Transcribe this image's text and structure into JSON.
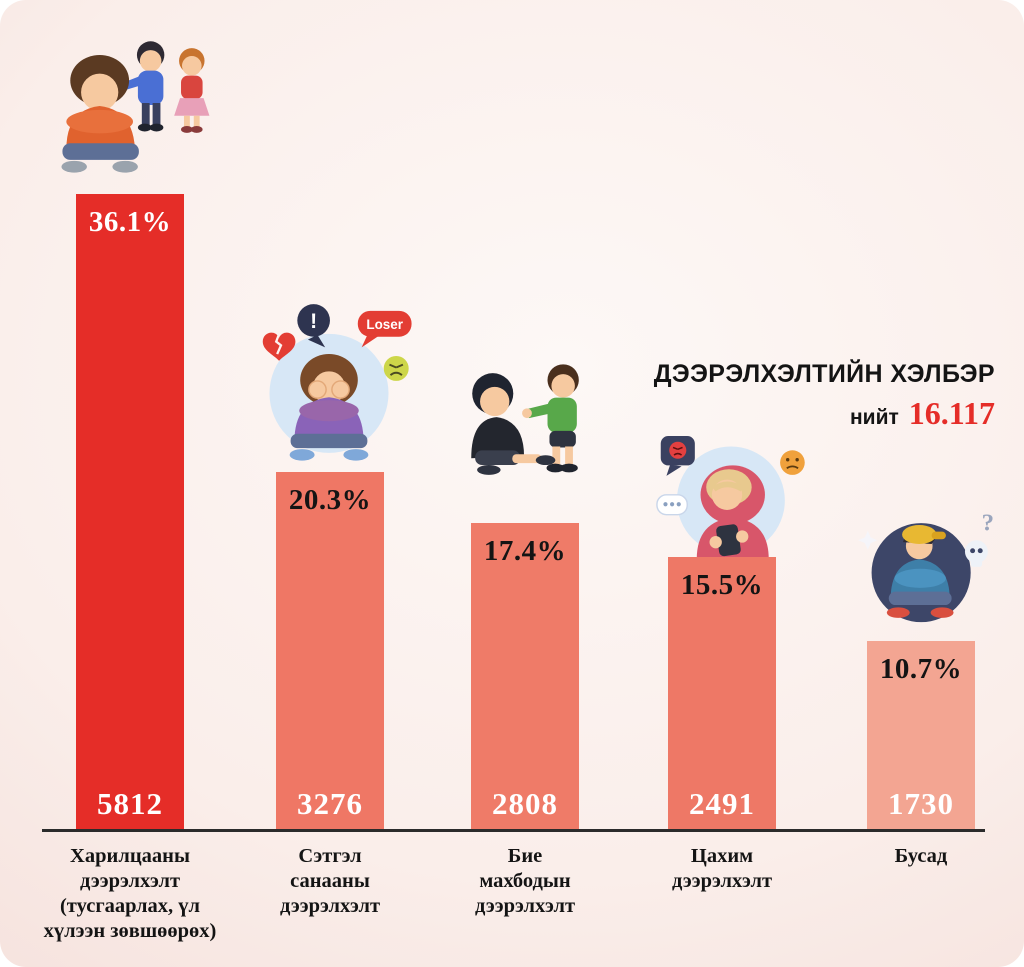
{
  "title": "ДЭЭРЭЛХЭЛТИЙН ХЭЛБЭР",
  "total_label": "нийт",
  "total_value": "16.117",
  "chart_data": {
    "type": "bar",
    "title": "ДЭЭРЭЛХЭЛТИЙН ХЭЛБЭР",
    "total": 16117,
    "categories": [
      "Харилцааны дээрэлхэлт (тусгаарлах, үл хүлээн зөвшөөрөх)",
      "Сэтгэл санааны дээрэлхэлт",
      "Бие махбодын дээрэлхэлт",
      "Цахим дээрэлхэлт",
      "Бусад"
    ],
    "series": [
      {
        "name": "count",
        "values": [
          5812,
          3276,
          2808,
          2491,
          1730
        ]
      },
      {
        "name": "percent",
        "values": [
          36.1,
          20.3,
          17.4,
          15.5,
          10.7
        ]
      }
    ],
    "ylim": [
      0,
      5812
    ],
    "legend": "none",
    "grid": false,
    "bars": [
      {
        "label": "Харилцааны\nдээрэлхэлт\n(тусгаарлах, үл\nхүлээн зөвшөөрөх)",
        "percent": "36.1%",
        "count": "5812",
        "value": 5812,
        "color": "#e52d28",
        "percent_color": "#ffffff"
      },
      {
        "label": "Сэтгэл\nсанааны\nдээрэлхэлт",
        "percent": "20.3%",
        "count": "3276",
        "value": 3276,
        "color": "#ef7765",
        "percent_color": "#141414"
      },
      {
        "label": "Бие\nмахбодын\nдээрэлхэлт",
        "percent": "17.4%",
        "count": "2808",
        "value": 2808,
        "color": "#ef7b68",
        "percent_color": "#141414"
      },
      {
        "label": "Цахим\nдээрэлхэлт",
        "percent": "15.5%",
        "count": "2491",
        "value": 2491,
        "color": "#ee7866",
        "percent_color": "#141414"
      },
      {
        "label": "Бусад",
        "percent": "10.7%",
        "count": "1730",
        "value": 1730,
        "color": "#f3a592",
        "percent_color": "#141414"
      }
    ]
  },
  "illustrations": {
    "emotional": {
      "bubble_exclaim": "!",
      "bubble_loser": "Loser"
    },
    "other": {
      "question_mark": "?"
    }
  }
}
